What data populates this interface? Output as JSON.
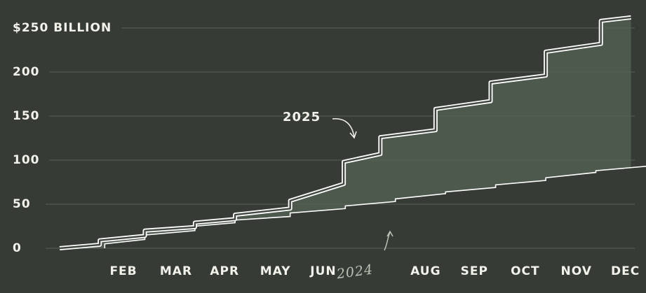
{
  "chart_data": {
    "type": "line",
    "xlim": [
      0,
      11.7
    ],
    "ylim": [
      0,
      250
    ],
    "xticks": [
      {
        "value": 1,
        "label": "FEB"
      },
      {
        "value": 2,
        "label": "MAR"
      },
      {
        "value": 3,
        "label": "APR"
      },
      {
        "value": 4,
        "label": "MAY"
      },
      {
        "value": 5,
        "label": "JUN"
      },
      {
        "value": 7,
        "label": "AUG"
      },
      {
        "value": 8,
        "label": "SEP"
      },
      {
        "value": 9,
        "label": "OCT"
      },
      {
        "value": 10,
        "label": "NOV"
      },
      {
        "value": 11,
        "label": "DEC"
      }
    ],
    "yticks": [
      0,
      50,
      100,
      150,
      200,
      {
        "value": 250,
        "label": "$250 BILLION"
      }
    ],
    "grid": true,
    "series": [
      {
        "name": "2025",
        "color": "#ffffff",
        "x": [
          0,
          0.8,
          0.8,
          1.7,
          1.7,
          2.7,
          2.7,
          3.5,
          3.5,
          4.6,
          4.6,
          5.67,
          5.67,
          6.4,
          6.4,
          7.5,
          7.5,
          8.6,
          8.6,
          9.7,
          9.7,
          10.8,
          10.8,
          11.4
        ],
        "values": [
          0,
          4,
          9,
          14,
          20,
          24,
          29,
          33,
          38,
          45,
          54,
          73,
          98,
          107,
          126,
          134,
          158,
          167,
          188,
          196,
          223,
          232,
          258,
          262
        ]
      },
      {
        "name": "2024",
        "color": "#ffffff",
        "x": [
          0.9,
          0.9,
          1.7,
          1.7,
          2.7,
          2.7,
          3.5,
          3.5,
          4.6,
          4.6,
          5.7,
          5.7,
          6.7,
          6.7,
          7.7,
          7.7,
          8.7,
          8.7,
          9.7,
          9.7,
          10.7,
          10.7,
          11.7
        ],
        "values": [
          0,
          5,
          10,
          15,
          20,
          25,
          29,
          32,
          36,
          40,
          45,
          48,
          53,
          56,
          62,
          64,
          69,
          72,
          77,
          80,
          86,
          88,
          93
        ]
      }
    ],
    "fill_color": "#4e594e"
  }
}
